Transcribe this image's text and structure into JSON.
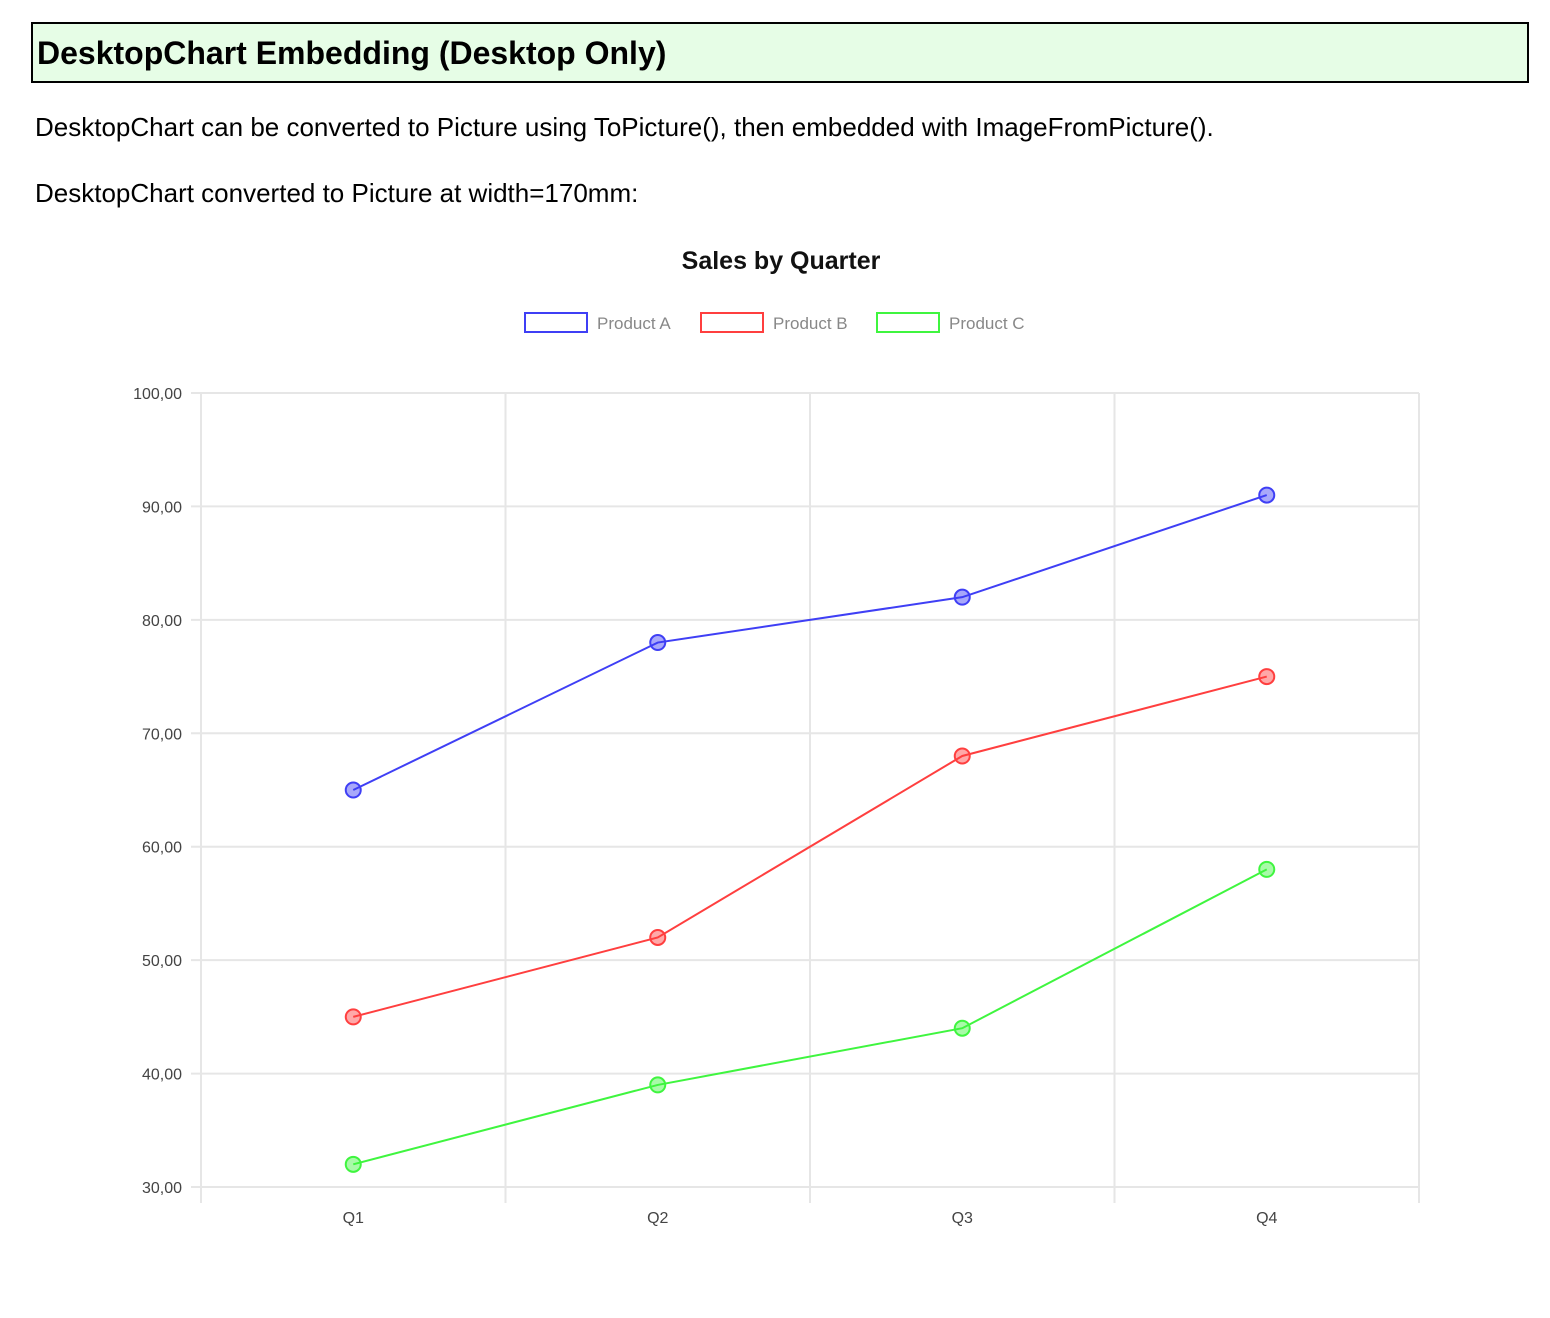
{
  "heading": "DesktopChart Embedding (Desktop Only)",
  "paragraphs": [
    "DesktopChart can be converted to Picture using ToPicture(), then embedded with ImageFromPicture().",
    "DesktopChart converted to Picture at width=170mm:"
  ],
  "colors": {
    "heading_background": "#e6fde6",
    "product_a": "#3f3ff5",
    "product_b": "#ff3f3f",
    "product_c": "#3ff53f",
    "grid": "#e6e6e6"
  },
  "chart_data": {
    "type": "line",
    "title": "Sales by Quarter",
    "xlabel": "",
    "ylabel": "",
    "categories": [
      "Q1",
      "Q2",
      "Q3",
      "Q4"
    ],
    "series": [
      {
        "name": "Product A",
        "values": [
          65,
          78,
          82,
          91
        ],
        "color": "#3f3ff5"
      },
      {
        "name": "Product B",
        "values": [
          45,
          52,
          68,
          75
        ],
        "color": "#ff3f3f"
      },
      {
        "name": "Product C",
        "values": [
          32,
          39,
          44,
          58
        ],
        "color": "#3ff53f"
      }
    ],
    "ylim": [
      30,
      100
    ],
    "yticks": [
      "30,00",
      "40,00",
      "50,00",
      "60,00",
      "70,00",
      "80,00",
      "90,00",
      "100,00"
    ],
    "grid": true,
    "legend_position": "top-center"
  }
}
